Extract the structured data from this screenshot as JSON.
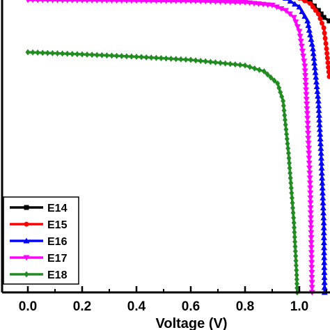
{
  "chart_data": {
    "type": "line",
    "title": "",
    "xlabel": "Voltage (V)",
    "ylabel": "",
    "xlim": [
      -0.08,
      1.13
    ],
    "ylim": [
      0,
      1
    ],
    "x_ticks": [
      0.0,
      0.2,
      0.4,
      0.6,
      0.8,
      1.0
    ],
    "x_tick_labels": [
      "0.0",
      "0.2",
      "0.4",
      "0.6",
      "0.8",
      "1.0"
    ],
    "y_ticks_shown": false,
    "grid": false,
    "legend_position": "bottom-left",
    "series": [
      {
        "name": "E14",
        "color": "#000000",
        "marker": "square",
        "points": [
          [
            0.0,
            0.865
          ],
          [
            0.2,
            0.865
          ],
          [
            0.4,
            0.865
          ],
          [
            0.6,
            0.865
          ],
          [
            0.8,
            0.864
          ],
          [
            0.9,
            0.862
          ],
          [
            0.95,
            0.858
          ],
          [
            1.0,
            0.85
          ],
          [
            1.04,
            0.835
          ],
          [
            1.07,
            0.81
          ],
          [
            1.09,
            0.79
          ],
          [
            1.11,
            0.78
          ]
        ]
      },
      {
        "name": "E15",
        "color": "#ff0000",
        "marker": "circle",
        "points": [
          [
            0.0,
            0.864
          ],
          [
            0.2,
            0.864
          ],
          [
            0.4,
            0.864
          ],
          [
            0.6,
            0.864
          ],
          [
            0.8,
            0.863
          ],
          [
            0.9,
            0.86
          ],
          [
            0.95,
            0.855
          ],
          [
            1.0,
            0.845
          ],
          [
            1.04,
            0.83
          ],
          [
            1.07,
            0.8
          ],
          [
            1.09,
            0.76
          ],
          [
            1.1,
            0.7
          ],
          [
            1.11,
            0.62
          ]
        ]
      },
      {
        "name": "E16",
        "color": "#0000ff",
        "marker": "triangle",
        "points": [
          [
            0.0,
            0.863
          ],
          [
            0.2,
            0.863
          ],
          [
            0.4,
            0.863
          ],
          [
            0.6,
            0.862
          ],
          [
            0.8,
            0.86
          ],
          [
            0.9,
            0.855
          ],
          [
            0.95,
            0.845
          ],
          [
            1.0,
            0.82
          ],
          [
            1.03,
            0.78
          ],
          [
            1.05,
            0.7
          ],
          [
            1.07,
            0.55
          ],
          [
            1.08,
            0.4
          ],
          [
            1.09,
            0.2
          ],
          [
            1.093,
            0.0
          ]
        ]
      },
      {
        "name": "E17",
        "color": "#ff00ff",
        "marker": "down-triangle",
        "points": [
          [
            0.0,
            0.84
          ],
          [
            0.2,
            0.839
          ],
          [
            0.4,
            0.838
          ],
          [
            0.6,
            0.837
          ],
          [
            0.8,
            0.833
          ],
          [
            0.9,
            0.825
          ],
          [
            0.95,
            0.81
          ],
          [
            0.98,
            0.79
          ],
          [
            1.0,
            0.75
          ],
          [
            1.02,
            0.65
          ],
          [
            1.03,
            0.5
          ],
          [
            1.04,
            0.3
          ],
          [
            1.045,
            0.1
          ],
          [
            1.047,
            0.0
          ]
        ]
      },
      {
        "name": "E18",
        "color": "#228b22",
        "marker": "diamond",
        "points": [
          [
            0.0,
            0.69
          ],
          [
            0.2,
            0.684
          ],
          [
            0.4,
            0.677
          ],
          [
            0.6,
            0.668
          ],
          [
            0.8,
            0.652
          ],
          [
            0.87,
            0.635
          ],
          [
            0.92,
            0.6
          ],
          [
            0.94,
            0.55
          ],
          [
            0.96,
            0.4
          ],
          [
            0.97,
            0.3
          ],
          [
            0.98,
            0.2
          ],
          [
            0.99,
            0.05
          ],
          [
            0.992,
            0.0
          ]
        ]
      }
    ]
  }
}
